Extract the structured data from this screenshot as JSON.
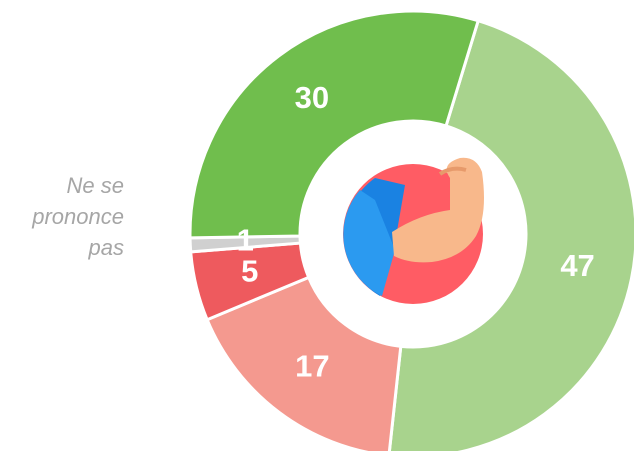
{
  "chart_data": {
    "type": "donut",
    "categories": [
      null,
      null,
      null,
      "Ne se prononce pas",
      null
    ],
    "values": [
      47,
      17,
      5,
      1,
      30
    ],
    "colors": [
      "#a8d38d",
      "#f4998f",
      "#ee5a5e",
      "#d0d0d0",
      "#70be4d"
    ]
  }
}
